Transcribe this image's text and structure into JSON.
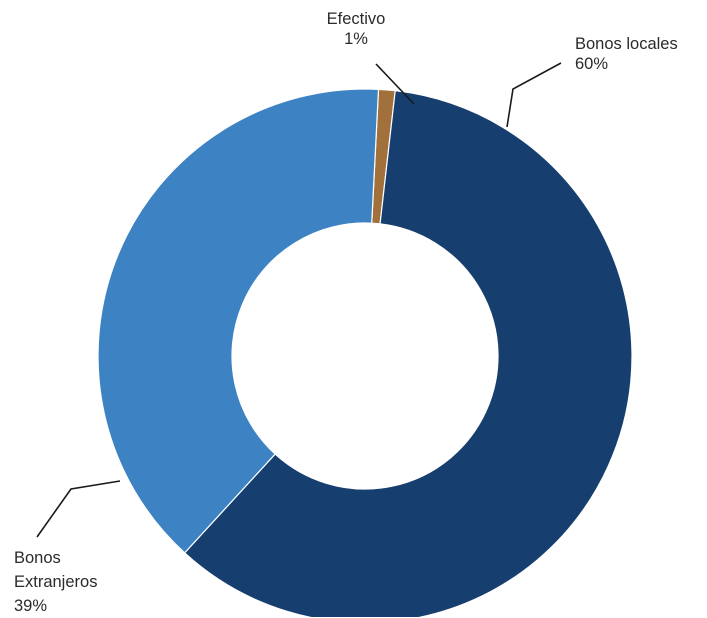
{
  "chart_data": {
    "type": "pie",
    "donut": true,
    "legend": "none",
    "slices": [
      {
        "label": "Bonos locales",
        "label_lines": [
          "Bonos locales"
        ],
        "value": 60,
        "value_label": "60%",
        "color": "#163e6e"
      },
      {
        "label": "Bonos Extranjeros",
        "label_lines": [
          "Bonos",
          "Extranjeros"
        ],
        "value": 39,
        "value_label": "39%",
        "color": "#3d82c2"
      },
      {
        "label": "Efectivo",
        "label_lines": [
          "Efectivo"
        ],
        "value": 1,
        "value_label": "1%",
        "color": "#a2703a"
      }
    ]
  }
}
